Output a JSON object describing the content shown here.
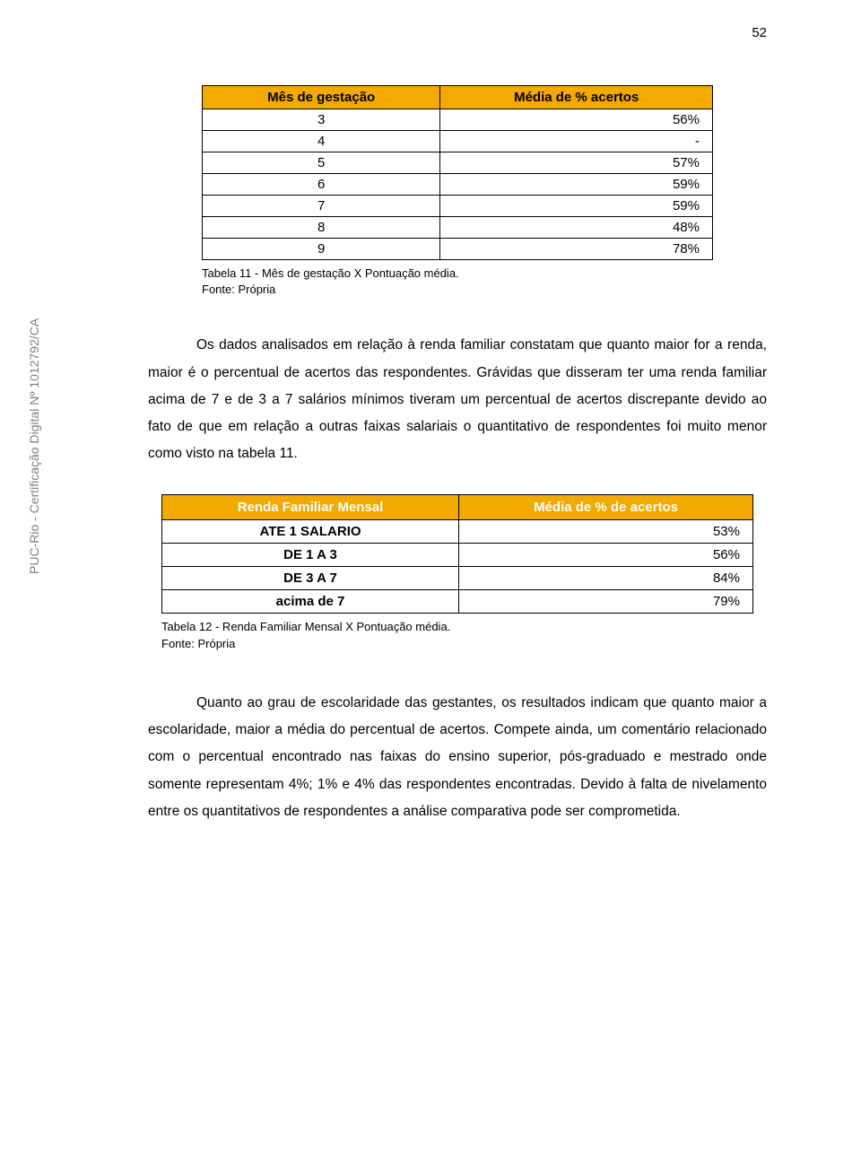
{
  "page_number": "52",
  "sidebar_label": "PUC-Rio - Certificação Digital Nº 1012792/CA",
  "table1": {
    "type": "table",
    "header_bg": "#f2a900",
    "border_color": "#000000",
    "columns": [
      "Mês de gestação",
      "Média de % acertos"
    ],
    "rows": [
      [
        "3",
        "56%"
      ],
      [
        "4",
        "-"
      ],
      [
        "5",
        "57%"
      ],
      [
        "6",
        "59%"
      ],
      [
        "7",
        "59%"
      ],
      [
        "8",
        "48%"
      ],
      [
        "9",
        "78%"
      ]
    ],
    "caption_line1": "Tabela 11 - Mês de gestação X Pontuação média.",
    "caption_line2": "Fonte: Própria"
  },
  "paragraph1": "Os dados analisados em relação à renda familiar constatam que quanto maior for a renda, maior é o percentual de acertos das respondentes. Grávidas que disseram ter uma renda familiar acima de 7 e de 3 a 7 salários mínimos tiveram um percentual de acertos discrepante devido ao fato de que em relação a outras faixas salariais o quantitativo de respondentes foi muito menor como visto na tabela 11.",
  "table2": {
    "type": "table",
    "header_bg": "#f2a900",
    "header_color": "#ffffff",
    "border_color": "#000000",
    "columns": [
      "Renda Familiar Mensal",
      "Média de % de acertos"
    ],
    "rows": [
      [
        "ATE 1 SALARIO",
        "53%"
      ],
      [
        "DE  1 A 3",
        "56%"
      ],
      [
        "DE 3 A 7",
        "84%"
      ],
      [
        "acima de 7",
        "79%"
      ]
    ],
    "caption_line1": "Tabela 12 - Renda Familiar Mensal X Pontuação média.",
    "caption_line2": " Fonte: Própria"
  },
  "paragraph2": "Quanto ao grau de escolaridade das gestantes, os resultados indicam que quanto maior a escolaridade, maior a média do percentual de acertos. Compete ainda, um comentário relacionado com o percentual encontrado nas faixas do ensino superior, pós-graduado e mestrado onde somente representam 4%; 1% e 4% das respondentes encontradas. Devido à falta de nivelamento entre os quantitativos de respondentes a análise comparativa pode ser comprometida."
}
